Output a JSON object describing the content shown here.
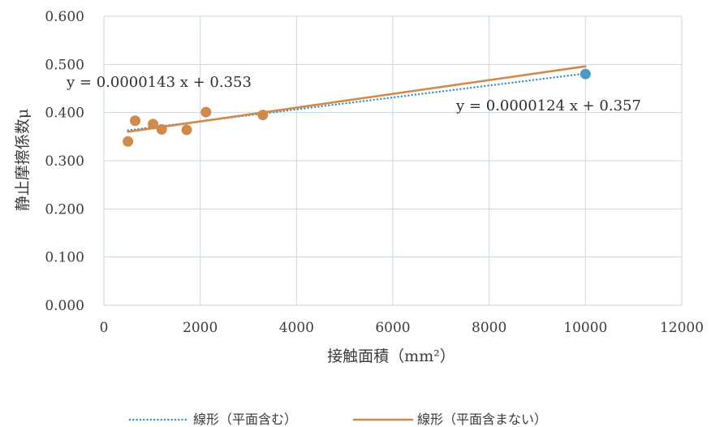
{
  "chart_data": {
    "type": "scatter",
    "xlabel": "接触面積（mm²）",
    "ylabel": "静止摩擦係数μ",
    "xlim": [
      0,
      12000
    ],
    "ylim": [
      0,
      0.6
    ],
    "x_ticks": [
      "0",
      "2000",
      "4000",
      "6000",
      "8000",
      "10000",
      "12000"
    ],
    "y_ticks": [
      "0.000",
      "0.100",
      "0.200",
      "0.300",
      "0.400",
      "0.500",
      "0.600"
    ],
    "grid": true,
    "series": [
      {
        "color": "#d08a4c",
        "points": [
          {
            "x": 500,
            "y": 0.34
          },
          {
            "x": 650,
            "y": 0.383
          },
          {
            "x": 1020,
            "y": 0.376
          },
          {
            "x": 1200,
            "y": 0.365
          },
          {
            "x": 1720,
            "y": 0.364
          },
          {
            "x": 2120,
            "y": 0.401
          },
          {
            "x": 3300,
            "y": 0.395
          }
        ]
      },
      {
        "color": "#4a9bc8",
        "points": [
          {
            "x": 10000,
            "y": 0.48
          }
        ]
      }
    ],
    "trendlines": [
      {
        "name": "線形（平面含む）",
        "style": "dotted",
        "color": "#3c8fbe",
        "slope": 1.24e-05,
        "intercept": 0.357,
        "x_range": [
          500,
          10000
        ],
        "equation": "y = 0.0000124 x + 0.357"
      },
      {
        "name": "線形（平面含まない）",
        "style": "solid",
        "color": "#d08a4c",
        "slope": 1.43e-05,
        "intercept": 0.353,
        "x_range": [
          500,
          10000
        ],
        "equation": "y = 0.0000143 x + 0.353"
      }
    ],
    "legend_position": "bottom"
  }
}
